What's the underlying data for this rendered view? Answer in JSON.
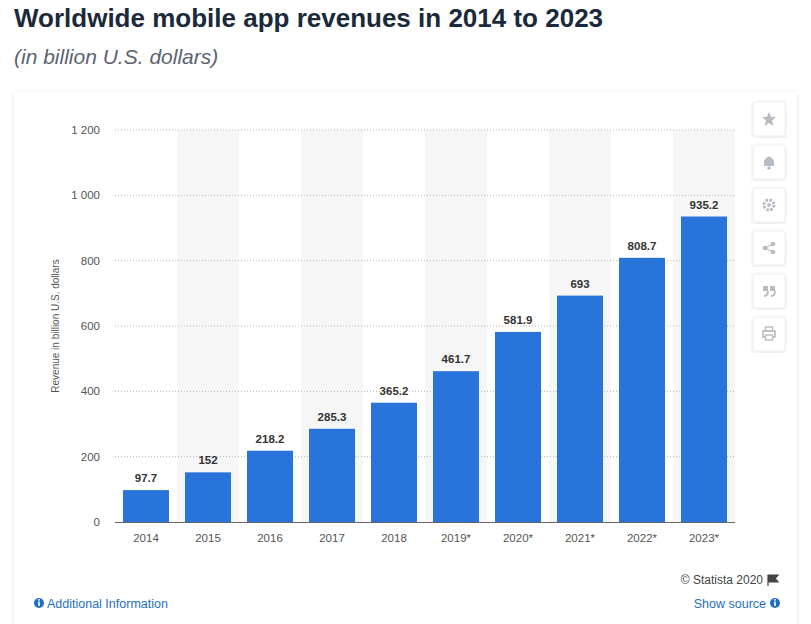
{
  "chart_data": {
    "type": "bar",
    "title": "Worldwide mobile app revenues in 2014 to 2023",
    "subtitle": "(in billion U.S. dollars)",
    "y_label": "Revenue in billion U.S. dollars",
    "categories": [
      "2014",
      "2015",
      "2016",
      "2017",
      "2018",
      "2019*",
      "2020*",
      "2021*",
      "2022*",
      "2023*"
    ],
    "values": [
      97.7,
      152,
      218.2,
      285.3,
      365.2,
      461.7,
      581.9,
      693,
      808.7,
      935.2
    ],
    "color": "#2874db",
    "ylim": [
      0,
      1200
    ],
    "yticks": [
      0,
      200,
      400,
      600,
      800,
      {
        "value": 1000,
        "label": "1 000"
      },
      {
        "value": 1200,
        "label": "1 200"
      }
    ],
    "grid": true,
    "data_labels": true,
    "annotations": [
      "© Statista 2020",
      "Additional Information",
      "Show source"
    ]
  }
}
